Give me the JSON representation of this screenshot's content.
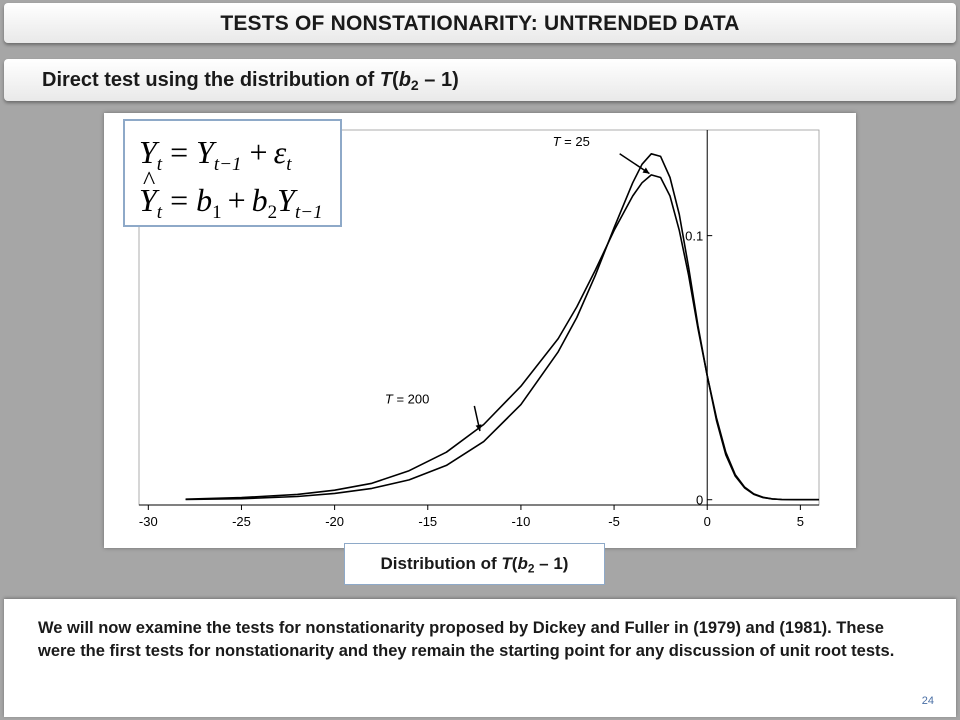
{
  "slide": {
    "title": "TESTS OF NONSTATIONARITY: UNTRENDED DATA",
    "subtitle": {
      "before": "Direct test using the distribution of ",
      "T": "T",
      "paren_open": "(",
      "b": "b",
      "sub": "2",
      "rest": " – 1)"
    },
    "caption": {
      "before": "Distribution of ",
      "T": "T",
      "paren_open": "(",
      "b": "b",
      "sub": "2",
      "rest": " – 1)"
    },
    "body_text": "We will now examine the tests for nonstationarity proposed by Dickey and Fuller in (1979) and (1981).  These were the first tests for nonstationarity and they remain the starting point for any discussion of unit root tests.",
    "page_number": "24"
  },
  "equations": {
    "eq1": {
      "lhs": "Y",
      "lhs_sub": "t",
      "eq": "=",
      "rhs1": "Y",
      "rhs1_sub": "t−1",
      "plus": "+",
      "eps": "ε",
      "eps_sub": "t"
    },
    "eq2": {
      "hat": "^",
      "lhs": "Y",
      "lhs_sub": "t",
      "eq": "=",
      "b1": "b",
      "b1_sub": "1",
      "plus": "+",
      "b2": "b",
      "b2_sub": "2",
      "y": "Y",
      "y_sub": "t−1"
    }
  },
  "chart_data": {
    "type": "line",
    "xlim": [
      -30.5,
      6
    ],
    "ylim": [
      -0.002,
      0.14
    ],
    "x_ticks": [
      -30,
      -25,
      -20,
      -15,
      -10,
      -5,
      0,
      5
    ],
    "x_tick_labels": [
      "-30",
      "-25",
      "-20",
      "-15",
      "-10",
      "-5",
      "0",
      "5"
    ],
    "y_ticks": [
      0,
      0.1
    ],
    "y_tick_labels": [
      "0",
      "0.1"
    ],
    "grid": false,
    "series": [
      {
        "name": "T = 25",
        "x": [
          -28,
          -25,
          -22,
          -20,
          -18,
          -16,
          -14,
          -12,
          -10,
          -8,
          -7,
          -6,
          -5,
          -4,
          -3.5,
          -3,
          -2.5,
          -2,
          -1.5,
          -1,
          -0.5,
          0,
          0.5,
          1,
          1.5,
          2,
          2.5,
          3,
          3.5,
          4,
          5,
          6
        ],
        "y": [
          0.0001,
          0.0004,
          0.0012,
          0.0024,
          0.0043,
          0.0075,
          0.013,
          0.022,
          0.036,
          0.056,
          0.069,
          0.085,
          0.103,
          0.12,
          0.127,
          0.131,
          0.13,
          0.122,
          0.108,
          0.088,
          0.066,
          0.047,
          0.03,
          0.017,
          0.009,
          0.0045,
          0.002,
          0.0008,
          0.0003,
          0.0001,
          0,
          0
        ]
      },
      {
        "name": "T = 200",
        "x": [
          -28,
          -25,
          -22,
          -20,
          -18,
          -16,
          -14,
          -12,
          -10,
          -8,
          -7,
          -6,
          -5,
          -4,
          -3.5,
          -3,
          -2.5,
          -2,
          -1.5,
          -1,
          -0.5,
          0,
          0.5,
          1,
          1.5,
          2,
          2.5,
          3,
          3.5,
          4,
          5,
          6
        ],
        "y": [
          0.0002,
          0.0008,
          0.002,
          0.0036,
          0.0062,
          0.011,
          0.018,
          0.0285,
          0.043,
          0.061,
          0.073,
          0.087,
          0.102,
          0.115,
          0.12,
          0.123,
          0.122,
          0.115,
          0.102,
          0.085,
          0.065,
          0.047,
          0.031,
          0.018,
          0.0095,
          0.0048,
          0.0022,
          0.0009,
          0.0003,
          0.0001,
          0,
          0
        ]
      }
    ],
    "annotations": [
      {
        "label": "T = 25",
        "T": "T",
        "rest": " = 25",
        "text_x": -8.3,
        "text_y": 0.134,
        "arrow_from": [
          -4.7,
          0.131
        ],
        "arrow_to": [
          -3.1,
          0.1235
        ]
      },
      {
        "label": "T = 200",
        "T": "T",
        "rest": " = 200",
        "text_x": -17.3,
        "text_y": 0.0365,
        "arrow_from": [
          -12.5,
          0.0355
        ],
        "arrow_to": [
          -12.2,
          0.026
        ]
      }
    ]
  }
}
